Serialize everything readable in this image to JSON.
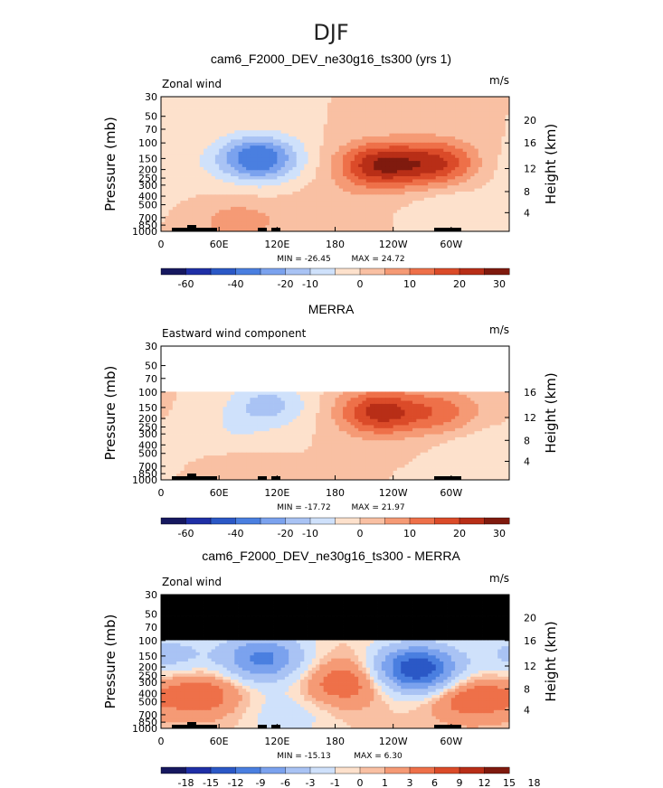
{
  "figure": {
    "title": "DJF"
  },
  "colors": {
    "wind_scale": [
      "#16185f",
      "#1f2fa6",
      "#2b58c6",
      "#4a7fe0",
      "#7ba2ee",
      "#a9c3f4",
      "#cfe1fb",
      "#fde1cc",
      "#f9c0a3",
      "#f59a75",
      "#ee7049",
      "#db4b29",
      "#b82e17",
      "#7f1a0e"
    ],
    "diff_scale": [
      "#16185f",
      "#1f2fa6",
      "#2b58c6",
      "#4a7fe0",
      "#7ba2ee",
      "#a9c3f4",
      "#cfe1fb",
      "#fde1cc",
      "#f9c0a3",
      "#f59a75",
      "#ee7049",
      "#db4b29",
      "#b82e17",
      "#7f1a0e"
    ],
    "mask": "#000000"
  },
  "chart_data": [
    {
      "type": "heatmap",
      "title": "cam6_F2000_DEV_ne30g16_ts300 (yrs 1)",
      "left_label": "Zonal wind",
      "units": "m/s",
      "ylabel": "Pressure (mb)",
      "ylabel_right": "Height (km)",
      "y_ticks": [
        "30",
        "50",
        "70",
        "100",
        "150",
        "200",
        "250",
        "300",
        "400",
        "500",
        "700",
        "850",
        "1000"
      ],
      "y_right_ticks": [
        "20",
        "16",
        "12",
        "8",
        "4"
      ],
      "x_ticks": [
        "0",
        "60E",
        "120E",
        "180",
        "120W",
        "60W"
      ],
      "min_label": "MIN = -26.45",
      "max_label": "MAX = 24.72",
      "min": -26.45,
      "max": 24.72,
      "colorbar_labels": [
        "-60",
        "-40",
        "-20",
        "-10",
        "0",
        "10",
        "20",
        "30"
      ],
      "levels": [
        -60,
        -50,
        -40,
        -30,
        -20,
        -15,
        -10,
        -5,
        0,
        5,
        10,
        15,
        20,
        25,
        30
      ],
      "data_top_mb": 30,
      "features": [
        {
          "lon": 100,
          "p": 150,
          "value": -26
        },
        {
          "lon": 225,
          "p": 180,
          "value": 24
        },
        {
          "lon": 285,
          "p": 170,
          "value": 20
        },
        {
          "lon": 80,
          "p": 800,
          "value": 8
        },
        {
          "lon": 170,
          "p": 600,
          "value": 4
        },
        {
          "lon": 10,
          "p": 200,
          "value": -3
        },
        {
          "lon": 300,
          "p": 500,
          "value": -4
        }
      ]
    },
    {
      "type": "heatmap",
      "title": "MERRA",
      "left_label": "Eastward wind component",
      "units": "m/s",
      "ylabel": "Pressure (mb)",
      "ylabel_right": "Height (km)",
      "y_ticks": [
        "30",
        "50",
        "70",
        "100",
        "150",
        "200",
        "250",
        "300",
        "400",
        "500",
        "700",
        "850",
        "1000"
      ],
      "y_right_ticks": [
        "16",
        "12",
        "8",
        "4"
      ],
      "x_ticks": [
        "0",
        "60E",
        "120E",
        "180",
        "120W",
        "60W"
      ],
      "min_label": "MIN = -17.72",
      "max_label": "MAX = 21.97",
      "min": -17.72,
      "max": 21.97,
      "colorbar_labels": [
        "-60",
        "-40",
        "-20",
        "-10",
        "0",
        "10",
        "20",
        "30"
      ],
      "levels": [
        -60,
        -50,
        -40,
        -30,
        -20,
        -15,
        -10,
        -5,
        0,
        5,
        10,
        15,
        20,
        25,
        30
      ],
      "data_top_mb": 100,
      "features": [
        {
          "lon": 110,
          "p": 140,
          "value": -12
        },
        {
          "lon": 225,
          "p": 170,
          "value": 22
        },
        {
          "lon": 290,
          "p": 170,
          "value": 12
        },
        {
          "lon": 70,
          "p": 300,
          "value": -4
        },
        {
          "lon": 330,
          "p": 450,
          "value": -5
        },
        {
          "lon": 80,
          "p": 820,
          "value": 4
        }
      ]
    },
    {
      "type": "heatmap",
      "title": "cam6_F2000_DEV_ne30g16_ts300 - MERRA",
      "left_label": "Zonal wind",
      "units": "m/s",
      "ylabel": "Pressure (mb)",
      "ylabel_right": "Height (km)",
      "y_ticks": [
        "30",
        "50",
        "70",
        "100",
        "150",
        "200",
        "250",
        "300",
        "400",
        "500",
        "700",
        "850",
        "1000"
      ],
      "y_right_ticks": [
        "20",
        "16",
        "12",
        "8",
        "4"
      ],
      "x_ticks": [
        "0",
        "60E",
        "120E",
        "180",
        "120W",
        "60W"
      ],
      "min_label": "MIN = -15.13",
      "max_label": "MAX =    6.30",
      "min": -15.13,
      "max": 6.3,
      "colorbar_labels": [
        "-18",
        "-15",
        "-12",
        "-9",
        "-6",
        "-3",
        "-1",
        "0",
        "1",
        "3",
        "6",
        "9",
        "12",
        "15",
        "18"
      ],
      "levels": [
        -21,
        -18,
        -15,
        -12,
        -9,
        -6,
        -3,
        -1,
        0,
        1,
        3,
        6,
        9,
        12,
        15,
        18,
        21
      ],
      "data_top_mb": 100,
      "features": [
        {
          "lon": 105,
          "p": 160,
          "value": -10
        },
        {
          "lon": 265,
          "p": 210,
          "value": -15
        },
        {
          "lon": 40,
          "p": 400,
          "value": 5
        },
        {
          "lon": 190,
          "p": 300,
          "value": 5
        },
        {
          "lon": 320,
          "p": 450,
          "value": 5
        },
        {
          "lon": 130,
          "p": 700,
          "value": -2
        },
        {
          "lon": 10,
          "p": 150,
          "value": -4
        }
      ]
    }
  ]
}
